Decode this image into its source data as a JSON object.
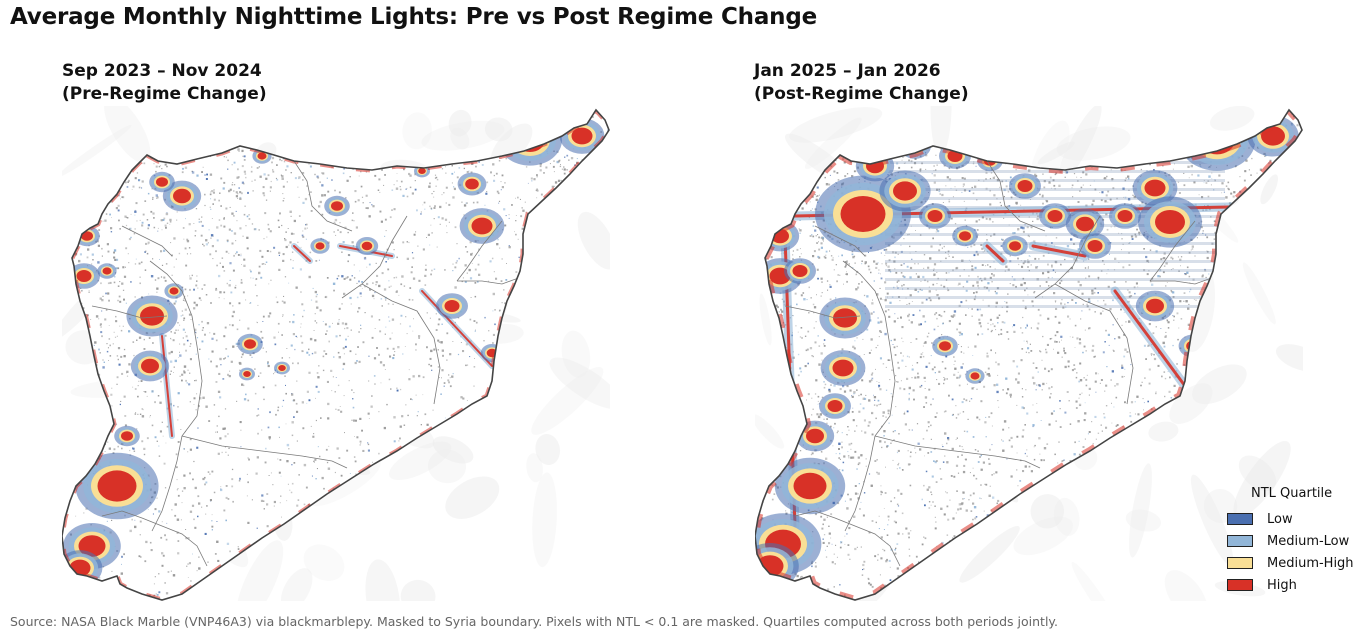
{
  "title": "Average Monthly Nighttime Lights: Pre vs Post Regime Change",
  "panels": [
    {
      "period": "Sep 2023 – Nov 2024",
      "label": "(Pre-Regime Change)"
    },
    {
      "period": "Jan 2025 – Jan 2026",
      "label": "(Post-Regime Change)"
    }
  ],
  "legend": {
    "title": "NTL Quartile",
    "items": [
      {
        "label": "Low",
        "color": "#4a6fb0"
      },
      {
        "label": "Medium-Low",
        "color": "#92b6d8"
      },
      {
        "label": "Medium-High",
        "color": "#f9df96"
      },
      {
        "label": "High",
        "color": "#d83127"
      }
    ]
  },
  "source": "Source: NASA Black Marble (VNP46A3) via blackmarblepy. Masked to Syria boundary. Pixels with NTL < 0.1 are masked. Quartiles computed across both periods jointly."
}
